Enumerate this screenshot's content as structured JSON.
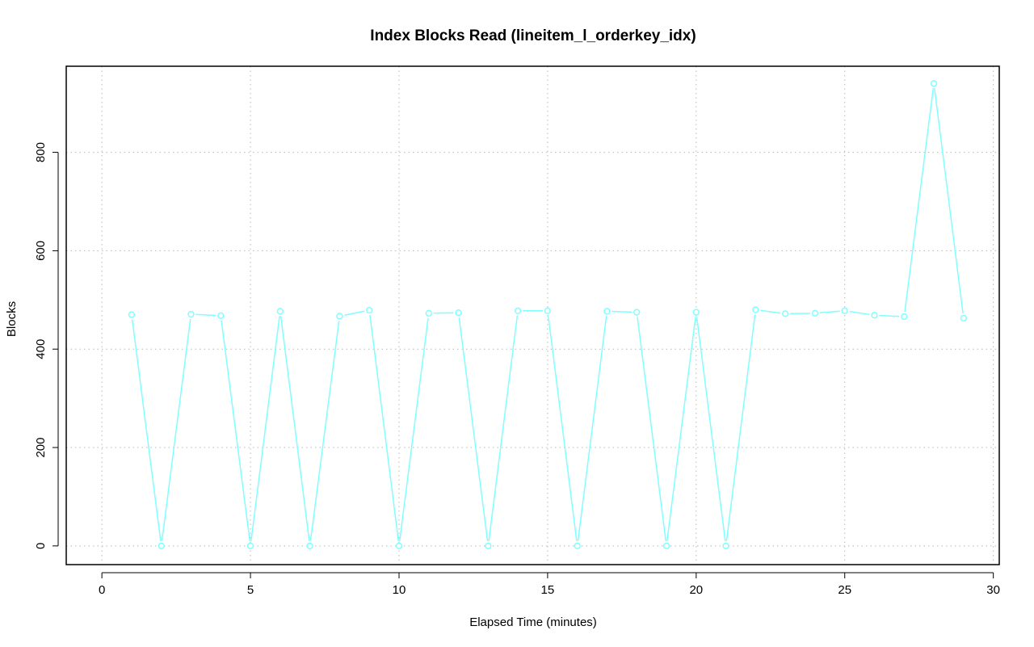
{
  "colors": {
    "series": "#7fffff",
    "background": "#ffffff",
    "axis": "#000000",
    "grid": "#b8b8b8"
  },
  "chart_data": {
    "type": "line",
    "title": "Index Blocks Read (lineitem_l_orderkey_idx)",
    "xlabel": "Elapsed Time (minutes)",
    "ylabel": "Blocks",
    "xlim": [
      -1.2,
      30.2
    ],
    "ylim": [
      -38,
      975
    ],
    "xticks": [
      0,
      5,
      10,
      15,
      20,
      25,
      30
    ],
    "yticks": [
      0,
      200,
      400,
      600,
      800
    ],
    "grid": true,
    "legend": "none",
    "series": [
      {
        "x": [
          1,
          2,
          3,
          4,
          5,
          6,
          7,
          8,
          9,
          10,
          11,
          12,
          13,
          14,
          15,
          16,
          17,
          18,
          19,
          20,
          21,
          22,
          23,
          24,
          25,
          26,
          27,
          28,
          29
        ],
        "values": [
          470,
          0,
          471,
          468,
          0,
          477,
          0,
          467,
          479,
          0,
          473,
          474,
          0,
          478,
          478,
          0,
          477,
          475,
          0,
          475,
          0,
          480,
          472,
          473,
          478,
          469,
          466,
          940,
          463
        ]
      }
    ]
  }
}
